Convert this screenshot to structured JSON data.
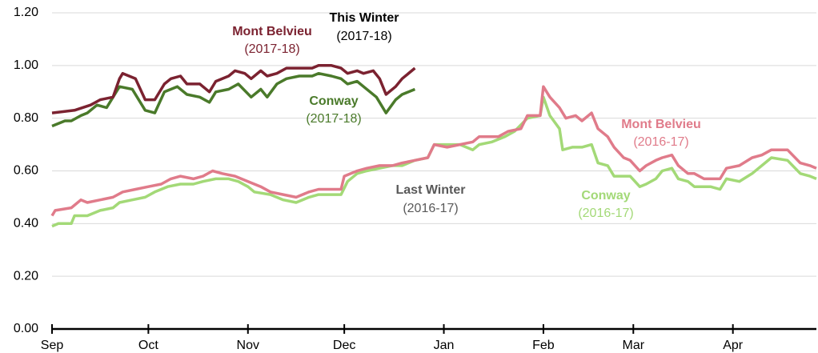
{
  "chart_data": {
    "type": "line",
    "xlim": [
      0,
      238
    ],
    "xticks": [
      {
        "value": 0,
        "label": "Sep"
      },
      {
        "value": 30,
        "label": "Oct"
      },
      {
        "value": 61,
        "label": "Nov"
      },
      {
        "value": 91,
        "label": "Dec"
      },
      {
        "value": 122,
        "label": "Jan"
      },
      {
        "value": 153,
        "label": "Feb"
      },
      {
        "value": 181,
        "label": "Mar"
      },
      {
        "value": 212,
        "label": "Apr"
      }
    ],
    "ylim": [
      0,
      1.2
    ],
    "yticks": [
      {
        "value": 0,
        "label": "0.00"
      },
      {
        "value": 0.2,
        "label": "0.20"
      },
      {
        "value": 0.4,
        "label": "0.40"
      },
      {
        "value": 0.6,
        "label": "0.60"
      },
      {
        "value": 0.8,
        "label": "0.80"
      },
      {
        "value": 1,
        "label": "1.00"
      },
      {
        "value": 1.2,
        "label": "1.20"
      }
    ],
    "grid": true,
    "annotations": [
      {
        "text": "This Winter",
        "period": "(2017-18)"
      },
      {
        "text": "Last Winter",
        "period": "(2016-17)"
      }
    ],
    "series": [
      {
        "name": "Mont Belvieu",
        "period": "(2017-18)",
        "color": "#7b2230",
        "x": [
          0,
          7,
          12,
          15,
          19,
          21,
          22,
          26,
          29,
          32,
          35,
          37,
          40,
          42,
          46,
          49,
          51,
          55,
          57,
          60,
          62,
          65,
          67,
          70,
          73,
          77,
          81,
          83,
          87,
          90,
          92,
          95,
          97,
          100,
          102,
          104,
          107,
          109,
          113
        ],
        "values": [
          0.82,
          0.83,
          0.85,
          0.87,
          0.88,
          0.95,
          0.97,
          0.95,
          0.87,
          0.87,
          0.93,
          0.95,
          0.96,
          0.93,
          0.93,
          0.9,
          0.94,
          0.96,
          0.98,
          0.97,
          0.95,
          0.98,
          0.96,
          0.97,
          0.99,
          0.99,
          0.99,
          1.0,
          1.0,
          0.99,
          0.97,
          0.98,
          0.97,
          0.98,
          0.95,
          0.89,
          0.92,
          0.95,
          0.99
        ]
      },
      {
        "name": "Conway",
        "period": "(2017-18)",
        "color": "#4a7a2a",
        "x": [
          0,
          4,
          6,
          9,
          11,
          14,
          17,
          21,
          25,
          29,
          32,
          35,
          39,
          42,
          46,
          49,
          51,
          55,
          58,
          62,
          65,
          67,
          70,
          73,
          77,
          81,
          83,
          87,
          90,
          92,
          95,
          97,
          101,
          104,
          107,
          109,
          113
        ],
        "values": [
          0.77,
          0.79,
          0.79,
          0.81,
          0.82,
          0.85,
          0.84,
          0.92,
          0.91,
          0.83,
          0.82,
          0.9,
          0.92,
          0.89,
          0.88,
          0.86,
          0.9,
          0.91,
          0.93,
          0.88,
          0.91,
          0.88,
          0.93,
          0.95,
          0.96,
          0.96,
          0.97,
          0.96,
          0.95,
          0.93,
          0.94,
          0.92,
          0.88,
          0.82,
          0.87,
          0.89,
          0.91
        ]
      },
      {
        "name": "Mont Belvieu",
        "period": "(2016-17)",
        "color": "#e07b8a",
        "x": [
          0,
          1,
          6,
          9,
          11,
          15,
          19,
          22,
          26,
          30,
          34,
          37,
          40,
          44,
          47,
          50,
          53,
          57,
          61,
          65,
          68,
          72,
          76,
          80,
          83,
          87,
          90,
          91,
          95,
          98,
          102,
          106,
          109,
          113,
          117,
          119,
          123,
          127,
          131,
          133,
          137,
          139,
          142,
          146,
          148,
          152,
          153,
          155,
          158,
          160,
          163,
          165,
          168,
          170,
          173,
          175,
          178,
          180,
          183,
          185,
          188,
          190,
          193,
          195,
          198,
          200,
          203,
          205,
          208,
          210,
          214,
          218,
          221,
          224,
          229,
          233,
          236,
          238
        ],
        "values": [
          0.43,
          0.45,
          0.46,
          0.49,
          0.48,
          0.49,
          0.5,
          0.52,
          0.53,
          0.54,
          0.55,
          0.57,
          0.58,
          0.57,
          0.58,
          0.6,
          0.59,
          0.58,
          0.56,
          0.54,
          0.52,
          0.51,
          0.5,
          0.52,
          0.53,
          0.53,
          0.53,
          0.58,
          0.6,
          0.61,
          0.62,
          0.62,
          0.63,
          0.64,
          0.65,
          0.7,
          0.69,
          0.7,
          0.71,
          0.73,
          0.73,
          0.73,
          0.75,
          0.76,
          0.81,
          0.81,
          0.92,
          0.88,
          0.84,
          0.8,
          0.81,
          0.79,
          0.82,
          0.76,
          0.73,
          0.69,
          0.65,
          0.64,
          0.6,
          0.62,
          0.64,
          0.65,
          0.66,
          0.62,
          0.59,
          0.59,
          0.57,
          0.57,
          0.57,
          0.61,
          0.62,
          0.65,
          0.66,
          0.68,
          0.68,
          0.63,
          0.62,
          0.61
        ]
      },
      {
        "name": "Conway",
        "period": "(2016-17)",
        "color": "#a3d977",
        "x": [
          0,
          2,
          6,
          7,
          11,
          15,
          19,
          21,
          25,
          29,
          32,
          36,
          40,
          44,
          47,
          51,
          55,
          58,
          61,
          63,
          68,
          72,
          76,
          80,
          83,
          87,
          90,
          92,
          95,
          98,
          102,
          106,
          109,
          113,
          117,
          119,
          123,
          127,
          131,
          133,
          137,
          141,
          144,
          148,
          152,
          153,
          155,
          158,
          159,
          162,
          165,
          168,
          170,
          173,
          175,
          180,
          183,
          185,
          188,
          190,
          193,
          195,
          198,
          200,
          203,
          205,
          208,
          210,
          214,
          218,
          221,
          224,
          229,
          233,
          236,
          238
        ],
        "values": [
          0.39,
          0.4,
          0.4,
          0.43,
          0.43,
          0.45,
          0.46,
          0.48,
          0.49,
          0.5,
          0.52,
          0.54,
          0.55,
          0.55,
          0.56,
          0.57,
          0.57,
          0.56,
          0.54,
          0.52,
          0.51,
          0.49,
          0.48,
          0.5,
          0.51,
          0.51,
          0.51,
          0.56,
          0.59,
          0.6,
          0.61,
          0.62,
          0.62,
          0.64,
          0.65,
          0.7,
          0.7,
          0.7,
          0.68,
          0.7,
          0.71,
          0.73,
          0.75,
          0.8,
          0.81,
          0.88,
          0.81,
          0.76,
          0.68,
          0.69,
          0.69,
          0.7,
          0.63,
          0.62,
          0.58,
          0.58,
          0.54,
          0.55,
          0.57,
          0.6,
          0.61,
          0.57,
          0.56,
          0.54,
          0.54,
          0.54,
          0.53,
          0.57,
          0.56,
          0.59,
          0.62,
          0.65,
          0.64,
          0.59,
          0.58,
          0.57
        ]
      }
    ]
  }
}
